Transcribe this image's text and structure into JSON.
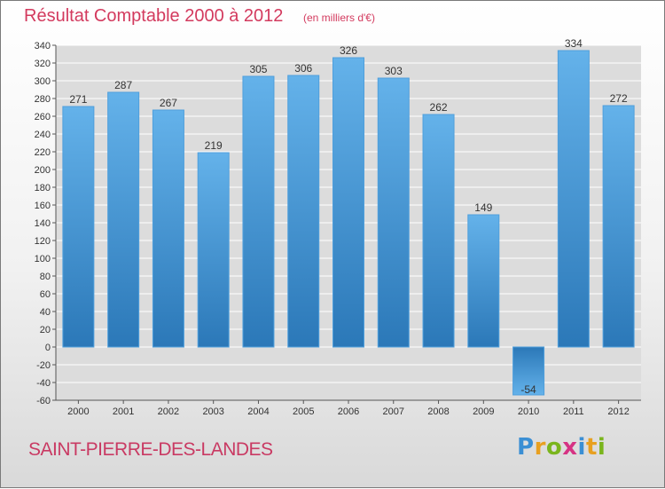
{
  "header": {
    "title": "Résultat Comptable 2000 à 2012",
    "subtitle": "(en milliers d'€)"
  },
  "footer": {
    "commune": "SAINT-PIERRE-DES-LANDES",
    "logo_letters": [
      {
        "ch": "P",
        "color": "#3b8fd4"
      },
      {
        "ch": "r",
        "color": "#e8a020"
      },
      {
        "ch": "o",
        "color": "#7ab51d"
      },
      {
        "ch": "x",
        "color": "#d63384"
      },
      {
        "ch": "i",
        "color": "#3b8fd4"
      },
      {
        "ch": "t",
        "color": "#e8a020"
      },
      {
        "ch": "i",
        "color": "#7ab51d"
      }
    ]
  },
  "colors": {
    "bar_light": "#64b2ea",
    "bar_dark": "#2b78b8",
    "grid": "#ffffff",
    "plot_bg": "#dcdcdc"
  },
  "chart_data": {
    "type": "bar",
    "title": "Résultat Comptable 2000 à 2012",
    "subtitle": "(en milliers d'€)",
    "categories": [
      "2000",
      "2001",
      "2002",
      "2003",
      "2004",
      "2005",
      "2006",
      "2007",
      "2008",
      "2009",
      "2010",
      "2011",
      "2012"
    ],
    "values": [
      271,
      287,
      267,
      219,
      305,
      306,
      326,
      303,
      262,
      149,
      -54,
      334,
      272
    ],
    "ylim": [
      -60,
      340
    ],
    "yticks": [
      -60,
      -40,
      -20,
      0,
      20,
      40,
      60,
      80,
      100,
      120,
      140,
      160,
      180,
      200,
      220,
      240,
      260,
      280,
      300,
      320,
      340
    ],
    "grid": true,
    "xlabel": "",
    "ylabel": ""
  }
}
